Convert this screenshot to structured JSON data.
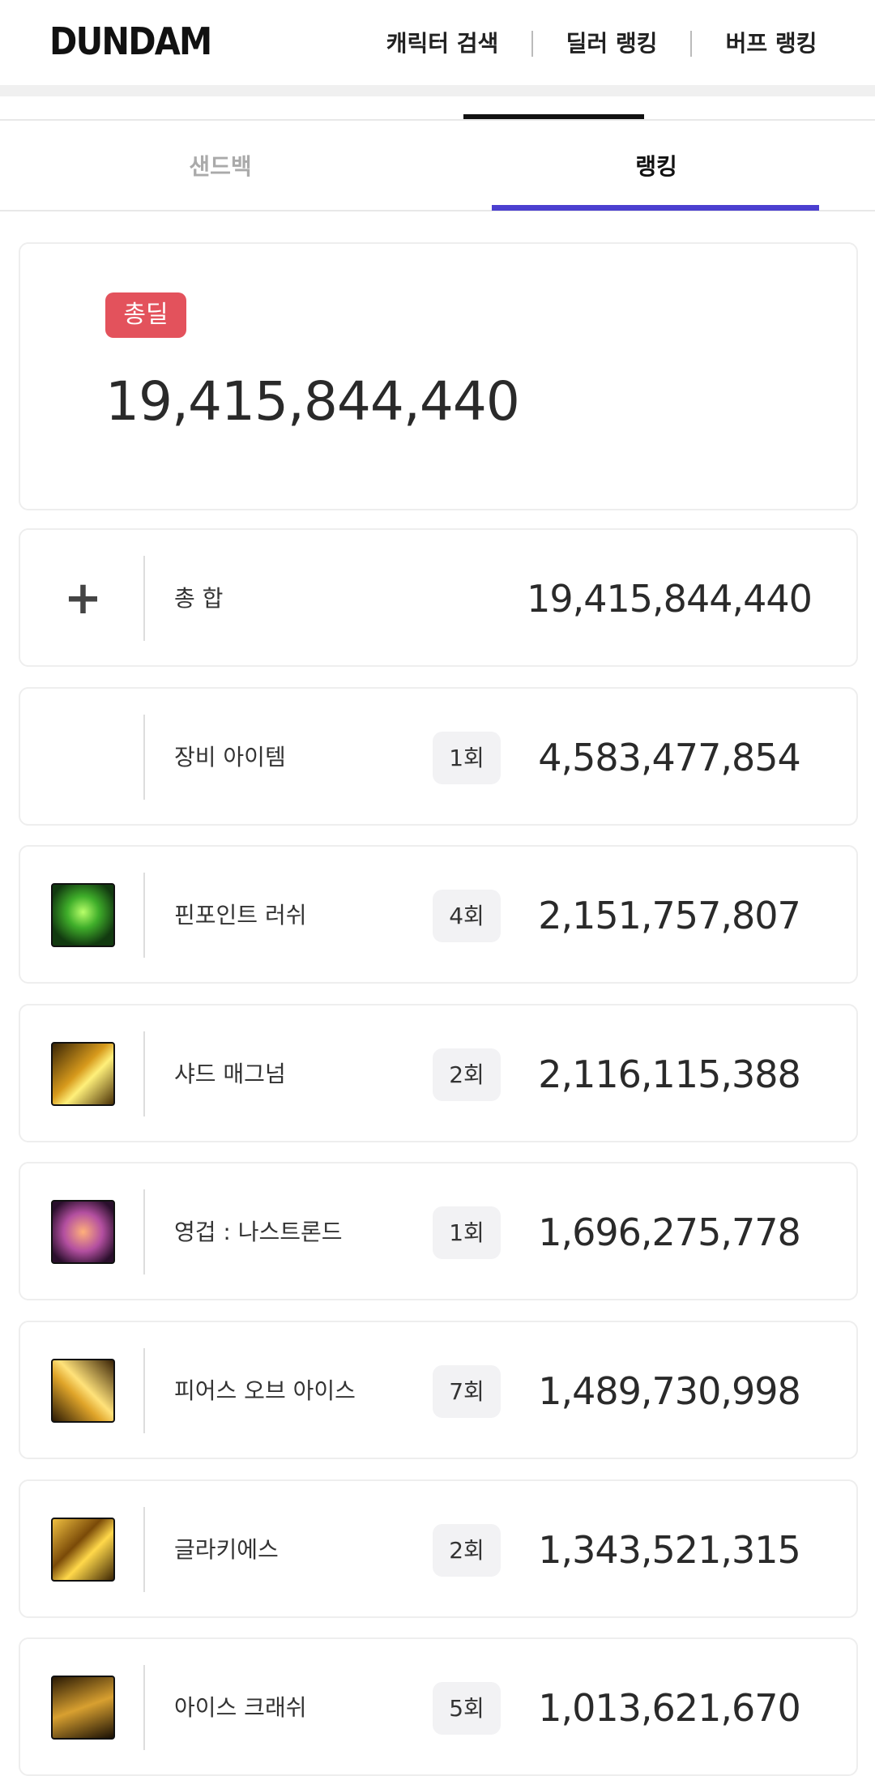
{
  "header": {
    "logo": "DUNDAM",
    "nav": [
      "캐릭터 검색",
      "딜러 랭킹",
      "버프 랭킹"
    ]
  },
  "tabs": [
    "샌드백",
    "랭킹"
  ],
  "total": {
    "badge": "총딜",
    "value": "19,415,844,440"
  },
  "rows": [
    {
      "name": "총 합",
      "count": null,
      "value": "19,415,844,440"
    },
    {
      "name": "장비 아이템",
      "count": "1회",
      "value": "4,583,477,854"
    },
    {
      "name": "핀포인트 러쉬",
      "count": "4회",
      "value": "2,151,757,807"
    },
    {
      "name": "샤드 매그넘",
      "count": "2회",
      "value": "2,116,115,388"
    },
    {
      "name": "영겁 : 나스트론드",
      "count": "1회",
      "value": "1,696,275,778"
    },
    {
      "name": "피어스 오브 아이스",
      "count": "7회",
      "value": "1,489,730,998"
    },
    {
      "name": "글라키에스",
      "count": "2회",
      "value": "1,343,521,315"
    },
    {
      "name": "아이스 크래쉬",
      "count": "5회",
      "value": "1,013,621,670"
    }
  ]
}
